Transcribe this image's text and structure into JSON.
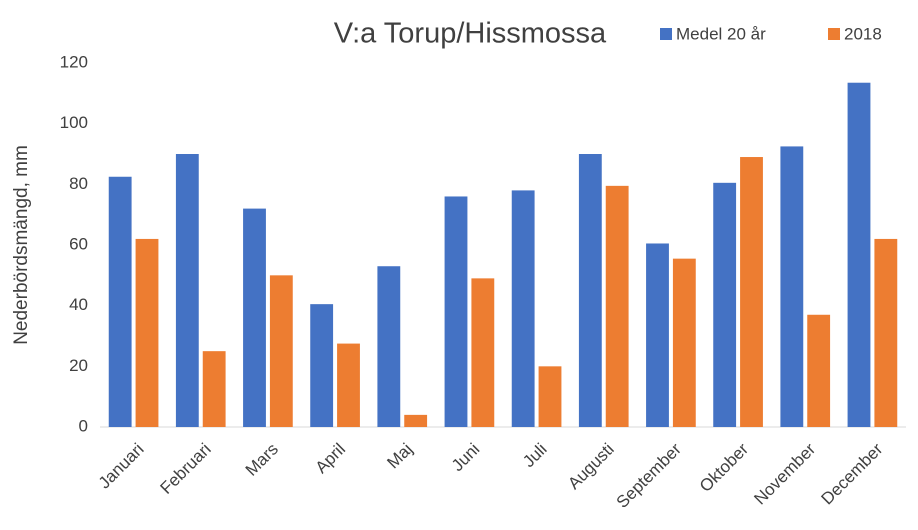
{
  "chart_data": {
    "type": "bar",
    "title": "V:a Torup/Hissmossa",
    "y_label": "Nederbördsmängd, mm",
    "categories": [
      "Januari",
      "Februari",
      "Mars",
      "April",
      "Maj",
      "Juni",
      "Juli",
      "Augusti",
      "September",
      "Oktober",
      "November",
      "December"
    ],
    "series": [
      {
        "name": "Medel 20 år",
        "color": "#4472c4",
        "values": [
          82.5,
          90,
          72,
          40.5,
          53,
          76,
          78,
          90,
          60.5,
          80.5,
          92.5,
          113.5
        ]
      },
      {
        "name": "2018",
        "color": "#ed7d31",
        "values": [
          62,
          25,
          50,
          27.5,
          4,
          49,
          20,
          79.5,
          55.5,
          89,
          37,
          62
        ]
      }
    ],
    "ylim": [
      0,
      120
    ],
    "yticks": [
      0,
      20,
      40,
      60,
      80,
      100,
      120
    ],
    "grid": false,
    "legend": "top-right"
  }
}
